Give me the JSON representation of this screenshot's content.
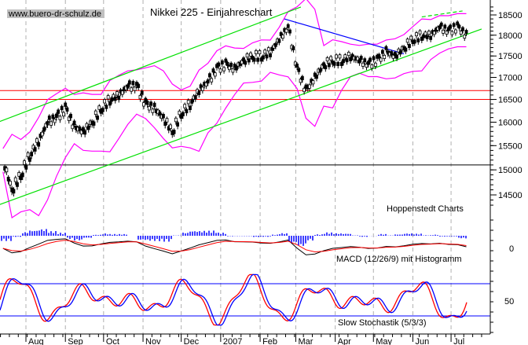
{
  "chart_data": {
    "type": "line",
    "title": "Nikkei 225 - Einjahreschart",
    "watermark": "www.buero-dr-schulz.de",
    "source": "Hoppenstedt Charts",
    "y_scale": "log",
    "ylim": [
      14250,
      18700
    ],
    "yticks": [
      14500,
      15000,
      15500,
      16000,
      16500,
      17000,
      17500,
      18000,
      18500
    ],
    "x_tick_labels": [
      {
        "label": "Aug",
        "date": "2006-08-01"
      },
      {
        "label": "Sep",
        "date": "2006-09-01"
      },
      {
        "label": "Oct",
        "date": "2006-10-01"
      },
      {
        "label": "Nov",
        "date": "2006-11-01"
      },
      {
        "label": "Dec",
        "date": "2006-12-01"
      },
      {
        "label": "2007",
        "date": "2007-01-01"
      },
      {
        "label": "Feb",
        "date": "2007-02-01"
      },
      {
        "label": "Mar",
        "date": "2007-03-01"
      },
      {
        "label": "Apr",
        "date": "2007-04-01"
      },
      {
        "label": "May",
        "date": "2007-05-01"
      },
      {
        "label": "Jun",
        "date": "2007-06-01"
      },
      {
        "label": "Jul",
        "date": "2007-07-01"
      }
    ],
    "series": [
      {
        "name": "Nikkei 225",
        "dates": [
          "2006-07-14",
          "2006-07-21",
          "2006-07-28",
          "2006-08-04",
          "2006-08-11",
          "2006-08-18",
          "2006-08-25",
          "2006-09-01",
          "2006-09-08",
          "2006-09-15",
          "2006-09-22",
          "2006-09-29",
          "2006-10-06",
          "2006-10-13",
          "2006-10-20",
          "2006-10-27",
          "2006-11-03",
          "2006-11-10",
          "2006-11-17",
          "2006-11-24",
          "2006-12-01",
          "2006-12-08",
          "2006-12-15",
          "2006-12-22",
          "2006-12-29",
          "2007-01-05",
          "2007-01-12",
          "2007-01-19",
          "2007-01-26",
          "2007-02-02",
          "2007-02-09",
          "2007-02-16",
          "2007-02-23",
          "2007-03-02",
          "2007-03-09",
          "2007-03-16",
          "2007-03-23",
          "2007-03-30",
          "2007-04-06",
          "2007-04-13",
          "2007-04-20",
          "2007-04-27",
          "2007-05-04",
          "2007-05-11",
          "2007-05-18",
          "2007-05-25",
          "2007-06-01",
          "2007-06-08",
          "2007-06-15",
          "2007-06-22",
          "2007-06-29",
          "2007-07-06",
          "2007-07-13"
        ],
        "close": [
          15200,
          14600,
          14900,
          15300,
          15600,
          16000,
          16100,
          16300,
          15900,
          15800,
          16000,
          16300,
          16500,
          16600,
          16800,
          16800,
          16400,
          16300,
          16100,
          15800,
          16200,
          16400,
          16700,
          16900,
          17200,
          17300,
          17200,
          17400,
          17500,
          17500,
          17600,
          17900,
          18200,
          17200,
          16700,
          17000,
          17300,
          17400,
          17400,
          17500,
          17400,
          17300,
          17400,
          17600,
          17500,
          17700,
          17900,
          18000,
          18000,
          18200,
          18100,
          18200,
          18000
        ]
      }
    ],
    "horizontal_lines": [
      {
        "value": 16700,
        "color": "#ff0000"
      },
      {
        "value": 16500,
        "color": "#ff0000"
      },
      {
        "value": 15100,
        "color": "#000000"
      }
    ],
    "trend_lines": [
      {
        "name": "upper-channel",
        "color": "#00e000",
        "from": {
          "date": "2006-07-10",
          "value": 16000
        },
        "to": {
          "date": "2007-03-05",
          "value": 18700
        }
      },
      {
        "name": "lower-channel",
        "color": "#00e000",
        "from": {
          "date": "2006-07-10",
          "value": 14300
        },
        "to": {
          "date": "2007-07-25",
          "value": 18150
        }
      },
      {
        "name": "resistance",
        "color": "#0000ff",
        "from": {
          "date": "2007-02-20",
          "value": 18400
        },
        "to": {
          "date": "2007-05-25",
          "value": 17550
        }
      },
      {
        "name": "short-upper-channel",
        "color": "#00e000",
        "from": {
          "date": "2007-06-08",
          "value": 18450
        },
        "to": {
          "date": "2007-07-10",
          "value": 18600
        }
      }
    ],
    "band_color": "#ff00ff",
    "indicators": {
      "macd": {
        "label": "MACD (12/26/9) mit Histogramm",
        "zero_label": "0",
        "colors": {
          "macd": "#000000",
          "signal": "#ff0000",
          "histogram": "#0000ff"
        }
      },
      "stochastic": {
        "label": "Slow Stochastik (5/3/3)",
        "mid_label": "50",
        "levels": [
          20,
          80
        ],
        "colors": {
          "k": "#ff0000",
          "d": "#0000ff"
        }
      }
    }
  }
}
